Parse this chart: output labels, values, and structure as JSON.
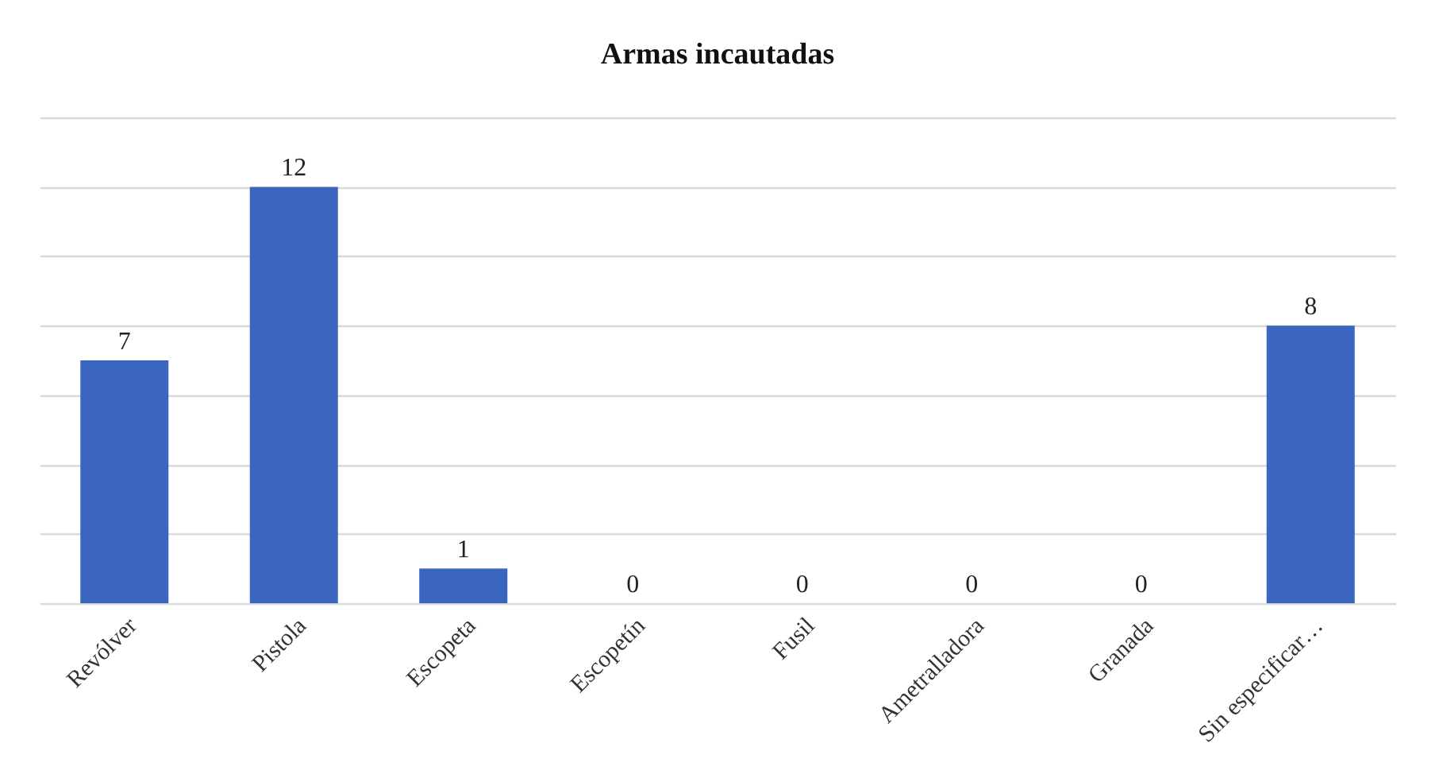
{
  "chart_data": {
    "type": "bar",
    "title": "Armas incautadas",
    "categories": [
      "Revólver",
      "Pistola",
      "Escopeta",
      "Escopetín",
      "Fusil",
      "Ametralladora",
      "Granada",
      "Sin especificar…"
    ],
    "values": [
      7,
      12,
      1,
      0,
      0,
      0,
      0,
      8
    ],
    "color": "#3a66c0",
    "ylim": [
      0,
      14
    ],
    "yticks": [
      0,
      2,
      4,
      6,
      8,
      10,
      12,
      14
    ],
    "grid": "y",
    "tick_labels": "x",
    "data_labels": true
  }
}
